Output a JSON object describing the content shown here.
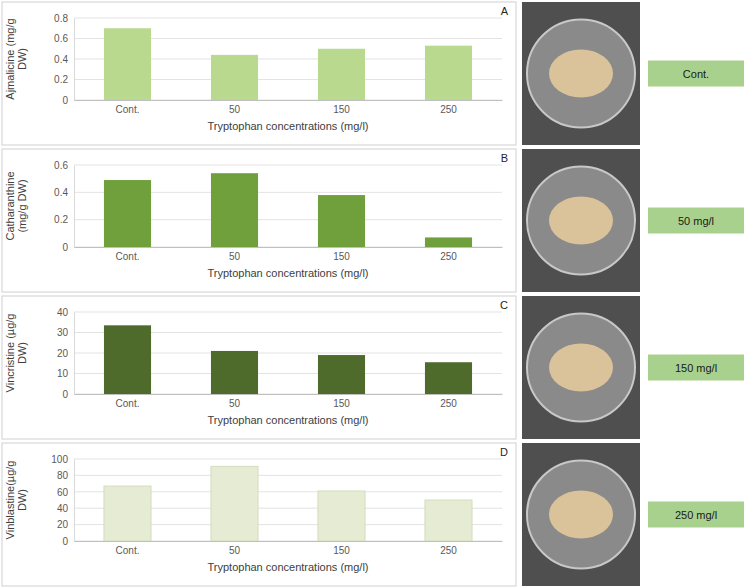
{
  "chart_data": [
    {
      "type": "bar",
      "panel_label": "A",
      "y_label": "Ajmalicine (mg/g DW)",
      "x_label": "Tryptophan concentrations (mg/l)",
      "categories": [
        "Cont.",
        "50",
        "150",
        "250"
      ],
      "values": [
        0.7,
        0.44,
        0.5,
        0.53
      ],
      "color": "#b9d98e",
      "ylim": [
        0,
        0.8
      ],
      "yticks": [
        0,
        0.2,
        0.4,
        0.6,
        0.8
      ],
      "grid": true
    },
    {
      "type": "bar",
      "panel_label": "B",
      "y_label": "Catharanthine (mg/g DW)",
      "x_label": "Tryptophan concentrations (mg/l)",
      "categories": [
        "Cont.",
        "50",
        "150",
        "250"
      ],
      "values": [
        0.49,
        0.54,
        0.38,
        0.07
      ],
      "color": "#70a03c",
      "ylim": [
        0,
        0.6
      ],
      "yticks": [
        0,
        0.2,
        0.4,
        0.6
      ],
      "grid": true
    },
    {
      "type": "bar",
      "panel_label": "C",
      "y_label": "Vincristine (µg/g DW)",
      "x_label": "Tryptophan concentrations (mg/l)",
      "categories": [
        "Cont.",
        "50",
        "150",
        "250"
      ],
      "values": [
        33.5,
        21,
        19,
        15.5
      ],
      "color": "#4e6b2b",
      "ylim": [
        0,
        40
      ],
      "yticks": [
        0,
        10,
        20,
        30,
        40
      ],
      "grid": true
    },
    {
      "type": "bar",
      "panel_label": "D",
      "y_label": "Vinblastine(µg/g DW)",
      "x_label": "Tryptophan concentrations (mg/l)",
      "categories": [
        "Cont.",
        "50",
        "150",
        "250"
      ],
      "values": [
        67,
        91,
        61,
        50
      ],
      "color": "#e6ecd3",
      "ylim": [
        0,
        100
      ],
      "yticks": [
        0,
        20,
        40,
        60,
        80,
        100
      ],
      "grid": true
    }
  ],
  "photo_labels": [
    "Cont.",
    "50 mg/l",
    "150 mg/l",
    "250 mg/l"
  ]
}
